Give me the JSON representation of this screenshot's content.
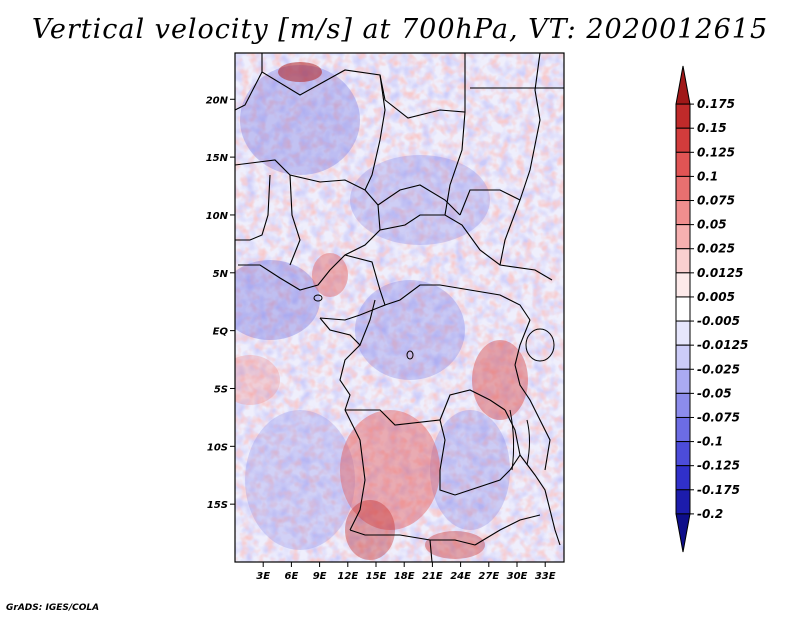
{
  "title": "Vertical velocity [m/s] at 700hPa, VT: 2020012615",
  "credit": "GrADS: IGES/COLA",
  "map": {
    "lon_range": [
      0,
      35
    ],
    "lat_range": [
      -20,
      24
    ],
    "lat_labels": [
      {
        "label": "20N",
        "lat": 20
      },
      {
        "label": "15N",
        "lat": 15
      },
      {
        "label": "10N",
        "lat": 10
      },
      {
        "label": "5N",
        "lat": 5
      },
      {
        "label": "EQ",
        "lat": 0
      },
      {
        "label": "5S",
        "lat": -5
      },
      {
        "label": "10S",
        "lat": -10
      },
      {
        "label": "15S",
        "lat": -15
      }
    ],
    "lon_labels": [
      {
        "label": "3E",
        "lon": 3
      },
      {
        "label": "6E",
        "lon": 6
      },
      {
        "label": "9E",
        "lon": 9
      },
      {
        "label": "12E",
        "lon": 12
      },
      {
        "label": "15E",
        "lon": 15
      },
      {
        "label": "18E",
        "lon": 18
      },
      {
        "label": "21E",
        "lon": 21
      },
      {
        "label": "24E",
        "lon": 24
      },
      {
        "label": "27E",
        "lon": 27
      },
      {
        "label": "30E",
        "lon": 30
      },
      {
        "label": "33E",
        "lon": 33
      }
    ]
  },
  "colorbar": {
    "labels": [
      "0.175",
      "0.15",
      "0.125",
      "0.1",
      "0.075",
      "0.05",
      "0.025",
      "0.0125",
      "0.005",
      "-0.005",
      "-0.0125",
      "-0.025",
      "-0.05",
      "-0.075",
      "-0.1",
      "-0.125",
      "-0.175",
      "-0.2"
    ],
    "colors": [
      "#a01818",
      "#c02a2a",
      "#d23c3c",
      "#e05454",
      "#e87070",
      "#f08e8e",
      "#f6b0b0",
      "#fad0d0",
      "#fdeaea",
      "#ffffff",
      "#e6e6fc",
      "#ccccf8",
      "#aaaaf2",
      "#8c8cec",
      "#6c6ce4",
      "#4c4cda",
      "#3030ca",
      "#1c1cac",
      "#0e0e8a"
    ]
  }
}
